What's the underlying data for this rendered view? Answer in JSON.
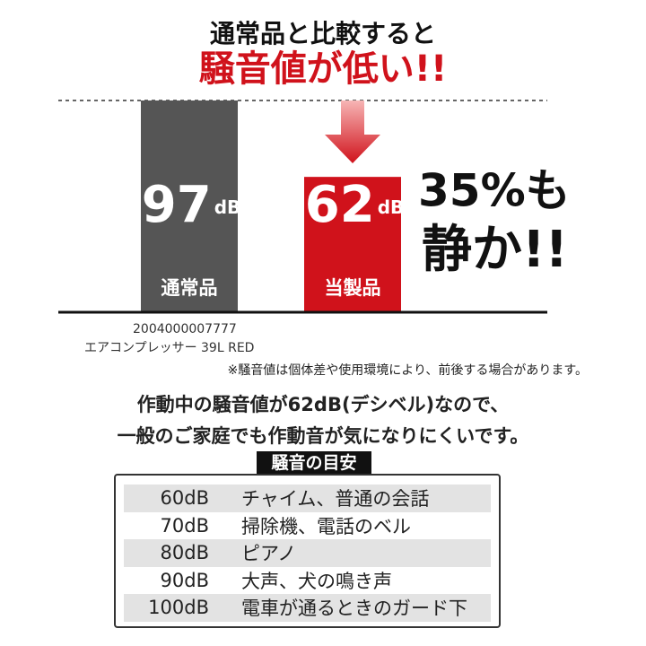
{
  "header": {
    "line1": "通常品と比較すると",
    "line2": "騒音値が低い!!"
  },
  "chart_data": {
    "type": "bar",
    "categories": [
      "通常品",
      "当製品"
    ],
    "values": [
      97,
      62
    ],
    "unit": "dB",
    "colors": [
      "#555555",
      "#d0121b"
    ],
    "ylim": [
      0,
      97
    ]
  },
  "callout": {
    "line1": "35%も",
    "line2": "静か!!"
  },
  "product": {
    "code": "2004000007777",
    "name": "エアコンプレッサー 39L RED"
  },
  "note": "※騒音値は個体差や使用環境により、前後する場合があります。",
  "description": {
    "line1": "作動中の騒音値が62dB(デシベル)なので、",
    "line2": "一般のご家庭でも作動音が気になりにくいです。"
  },
  "table": {
    "title": "騒音の目安",
    "rows": [
      [
        "60dB",
        "チャイム、普通の会話"
      ],
      [
        "70dB",
        "掃除機、電話のベル"
      ],
      [
        "80dB",
        "ピアノ"
      ],
      [
        "90dB",
        "大声、犬の鳴き声"
      ],
      [
        "100dB",
        "電車が通るときのガード下"
      ]
    ]
  }
}
